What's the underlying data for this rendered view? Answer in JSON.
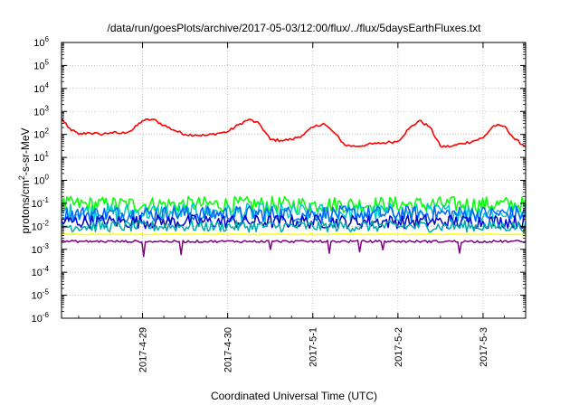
{
  "chart_data": {
    "type": "line",
    "title": "/data/run/goesPlots/archive/2017-05-03/12:00/flux/../flux/5daysEarthFluxes.txt",
    "xlabel": "Coordinated Universal Time (UTC)",
    "ylabel": {
      "prefix": "protons/cm",
      "superscript": "2",
      "suffix": "-s-sr-MeV"
    },
    "yscale": "log",
    "ylim": [
      1e-06,
      1000000.0
    ],
    "y_ticks": [
      {
        "base": "10",
        "exp": "-6",
        "value": 1e-06
      },
      {
        "base": "10",
        "exp": "-5",
        "value": 1e-05
      },
      {
        "base": "10",
        "exp": "-4",
        "value": 0.0001
      },
      {
        "base": "10",
        "exp": "-3",
        "value": 0.001
      },
      {
        "base": "10",
        "exp": "-2",
        "value": 0.01
      },
      {
        "base": "10",
        "exp": "-1",
        "value": 0.1
      },
      {
        "base": "10",
        "exp": "0",
        "value": 1
      },
      {
        "base": "10",
        "exp": "1",
        "value": 10
      },
      {
        "base": "10",
        "exp": "2",
        "value": 100
      },
      {
        "base": "10",
        "exp": "3",
        "value": 1000
      },
      {
        "base": "10",
        "exp": "4",
        "value": 10000
      },
      {
        "base": "10",
        "exp": "5",
        "value": 100000
      },
      {
        "base": "10",
        "exp": "6",
        "value": 1000000
      }
    ],
    "x_ticks": [
      "2017-4-29",
      "2017-4-30",
      "2017-5-1",
      "2017-5-2",
      "2017-5-3"
    ],
    "xlim": [
      "2017-04-28 01:10",
      "2017-05-03 12:00"
    ],
    "grid": true,
    "series": [
      {
        "color": "#ff0000",
        "x": [
          "2017-04-28 01:10",
          "2017-04-28 03:00",
          "2017-04-28 06:00",
          "2017-04-28 09:00",
          "2017-04-28 12:00",
          "2017-04-28 15:00",
          "2017-04-28 18:00",
          "2017-04-28 21:00",
          "2017-04-29 00:00",
          "2017-04-29 03:00",
          "2017-04-29 06:00",
          "2017-04-29 09:00",
          "2017-04-29 12:00",
          "2017-04-29 15:00",
          "2017-04-29 18:00",
          "2017-04-29 21:00",
          "2017-04-30 00:00",
          "2017-04-30 03:00",
          "2017-04-30 06:00",
          "2017-04-30 09:00",
          "2017-04-30 12:00",
          "2017-04-30 15:00",
          "2017-04-30 18:00",
          "2017-04-30 21:00",
          "2017-05-01 00:00",
          "2017-05-01 03:00",
          "2017-05-01 06:00",
          "2017-05-01 09:00",
          "2017-05-01 12:00",
          "2017-05-01 15:00",
          "2017-05-01 18:00",
          "2017-05-01 21:00",
          "2017-05-02 00:00",
          "2017-05-02 03:00",
          "2017-05-02 06:00",
          "2017-05-02 09:00",
          "2017-05-02 12:00",
          "2017-05-02 15:00",
          "2017-05-02 18:00",
          "2017-05-02 21:00",
          "2017-05-03 00:00",
          "2017-05-03 03:00",
          "2017-05-03 06:00",
          "2017-05-03 09:00",
          "2017-05-03 12:00"
        ],
        "y": [
          500,
          200,
          100,
          120,
          100,
          120,
          110,
          150,
          400,
          450,
          250,
          150,
          100,
          95,
          90,
          110,
          130,
          260,
          450,
          280,
          60,
          55,
          60,
          90,
          200,
          300,
          120,
          35,
          30,
          35,
          40,
          45,
          50,
          170,
          400,
          210,
          30,
          30,
          40,
          50,
          70,
          240,
          230,
          60,
          30
        ]
      },
      {
        "color": "#00ff00",
        "baseline": 0.09,
        "jitter": 0.35
      },
      {
        "color": "#00c8c8",
        "baseline": 0.04,
        "jitter": 0.4
      },
      {
        "color": "#0066ff",
        "baseline": 0.035,
        "jitter": 0.35
      },
      {
        "color": "#0000cc",
        "baseline": 0.016,
        "jitter": 0.3
      },
      {
        "color": "#00aaaa",
        "baseline": 0.01,
        "jitter": 0.25
      },
      {
        "color": "#ffff00",
        "baseline": 0.0045,
        "jitter": 0.02
      },
      {
        "color": "#800080",
        "baseline": 0.0022,
        "jitter": 0.05,
        "dips": true
      }
    ]
  }
}
